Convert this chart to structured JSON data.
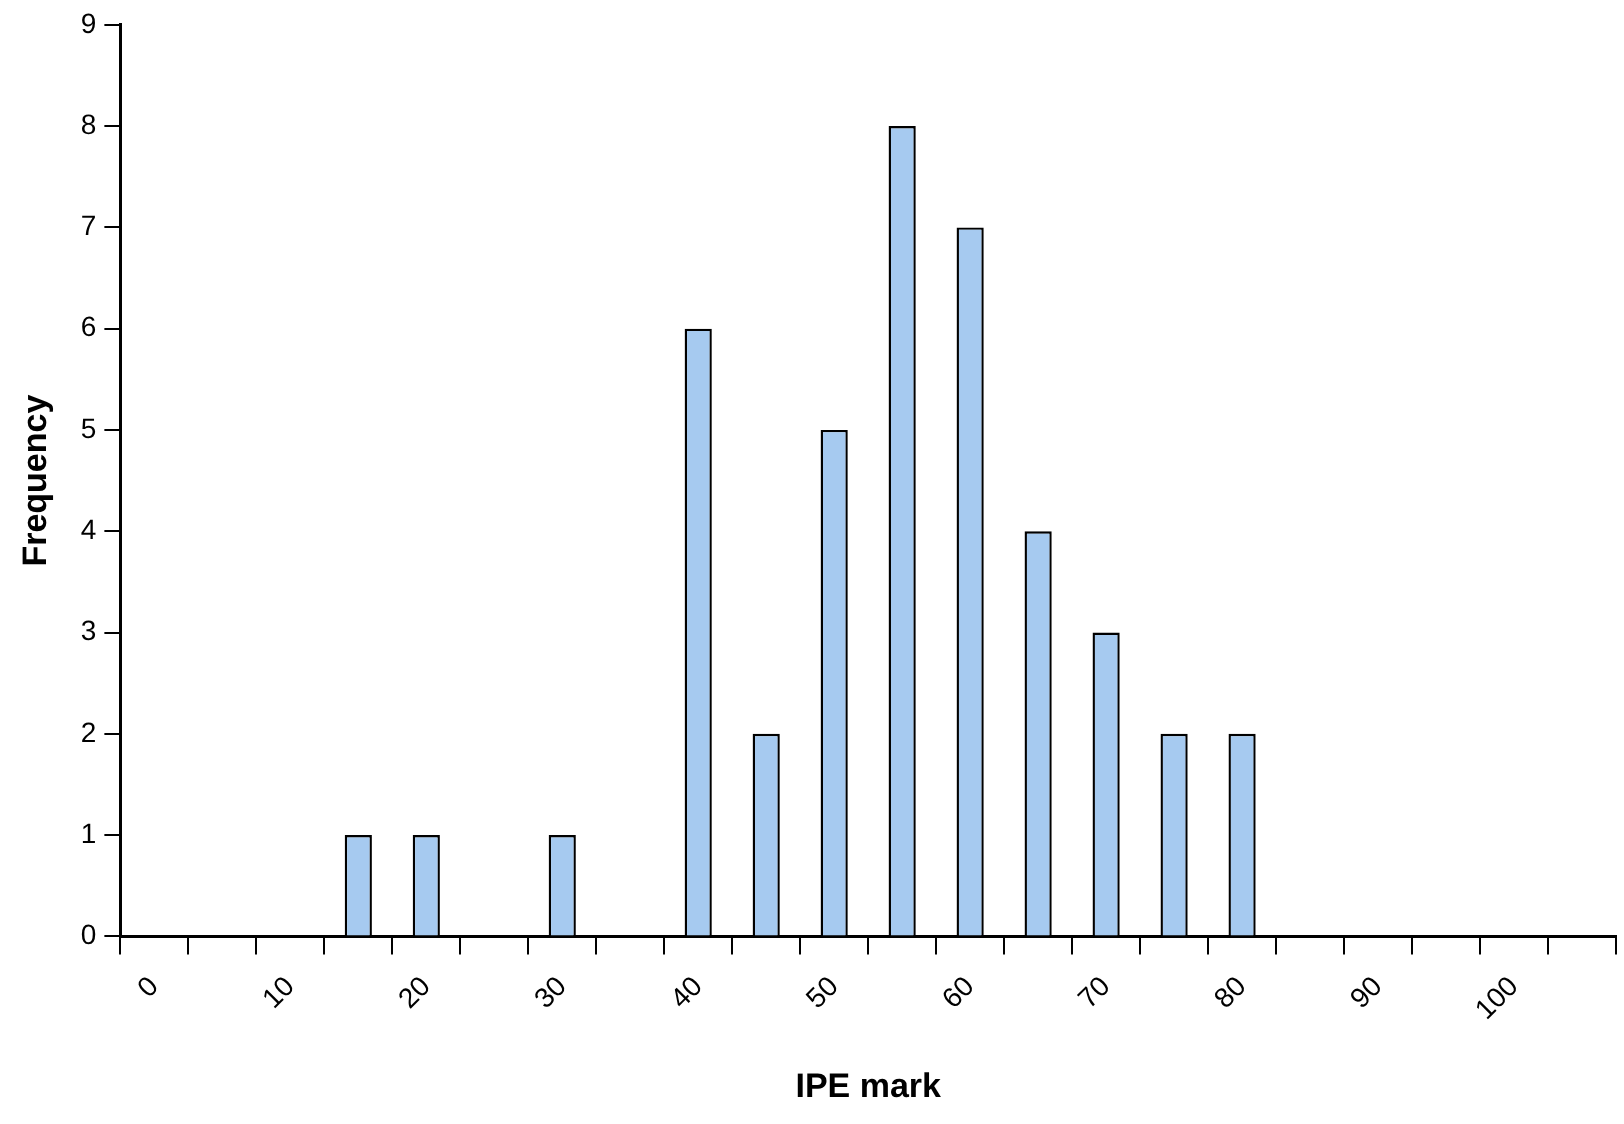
{
  "chart_data": {
    "type": "bar",
    "xlabel": "IPE mark",
    "ylabel": "Frequency",
    "categories": [
      "0",
      null,
      "10",
      null,
      "20",
      null,
      "30",
      null,
      "40",
      null,
      "50",
      null,
      "60",
      null,
      "70",
      null,
      "80",
      null,
      "90",
      null,
      "100",
      null
    ],
    "values": [
      0,
      0,
      0,
      1,
      1,
      0,
      1,
      0,
      6,
      2,
      5,
      8,
      7,
      4,
      3,
      2,
      2,
      0,
      0,
      0,
      0,
      0
    ],
    "color": "#a6caf0",
    "ylim": [
      0,
      9
    ],
    "yticks": [
      0,
      1,
      2,
      3,
      4,
      5,
      6,
      7,
      8,
      9
    ],
    "grid": false,
    "legend": false
  }
}
